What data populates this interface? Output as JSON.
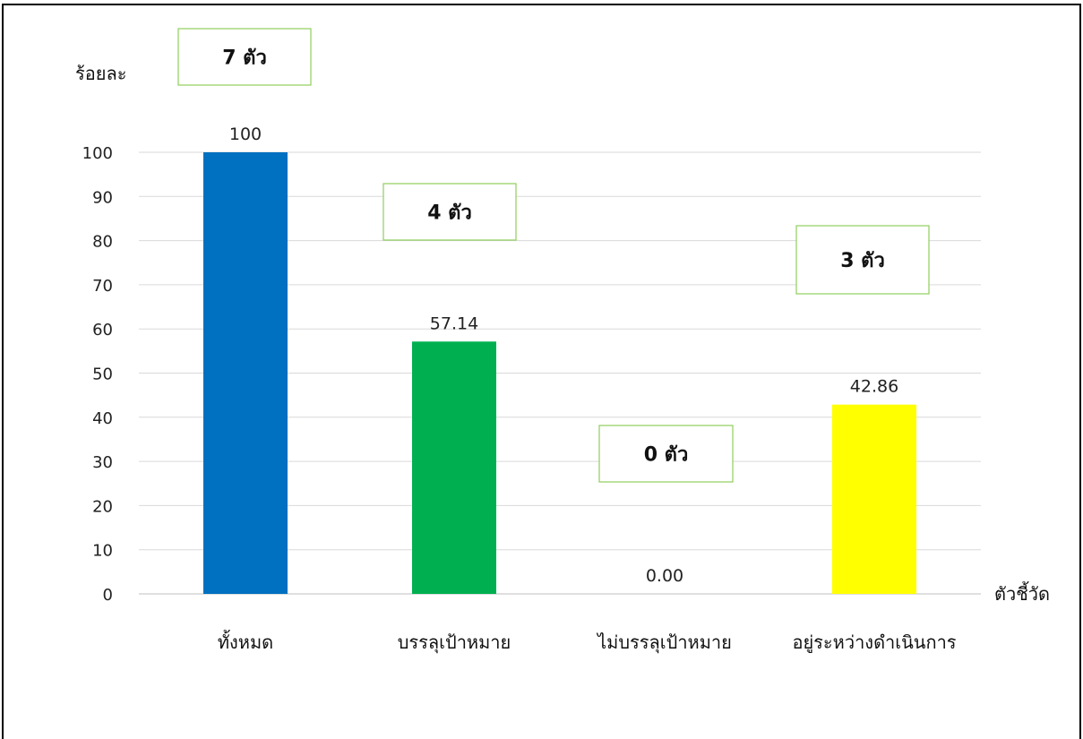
{
  "chart_data": {
    "type": "bar",
    "ylabel": "ร้อยละ",
    "xlabel": "ตัวชี้วัด",
    "ylim": [
      0,
      100
    ],
    "yticks": [
      0,
      10,
      20,
      30,
      40,
      50,
      60,
      70,
      80,
      90,
      100
    ],
    "grid": true,
    "categories": [
      "ทั้งหมด",
      "บรรลุเป้าหมาย",
      "ไม่บรรลุเป้าหมาย",
      "อยู่ระหว่างดำเนินการ"
    ],
    "values": [
      100,
      57.14,
      0,
      42.86
    ],
    "data_labels": [
      "100",
      "57.14",
      "0.00",
      "42.86"
    ],
    "colors": [
      "#0070c0",
      "#00b050",
      "#ffffff",
      "#ffff00"
    ],
    "annotations": [
      "7 ตัว",
      "4 ตัว",
      "0 ตัว",
      "3 ตัว"
    ],
    "annotation_border": "#8fce5c"
  }
}
